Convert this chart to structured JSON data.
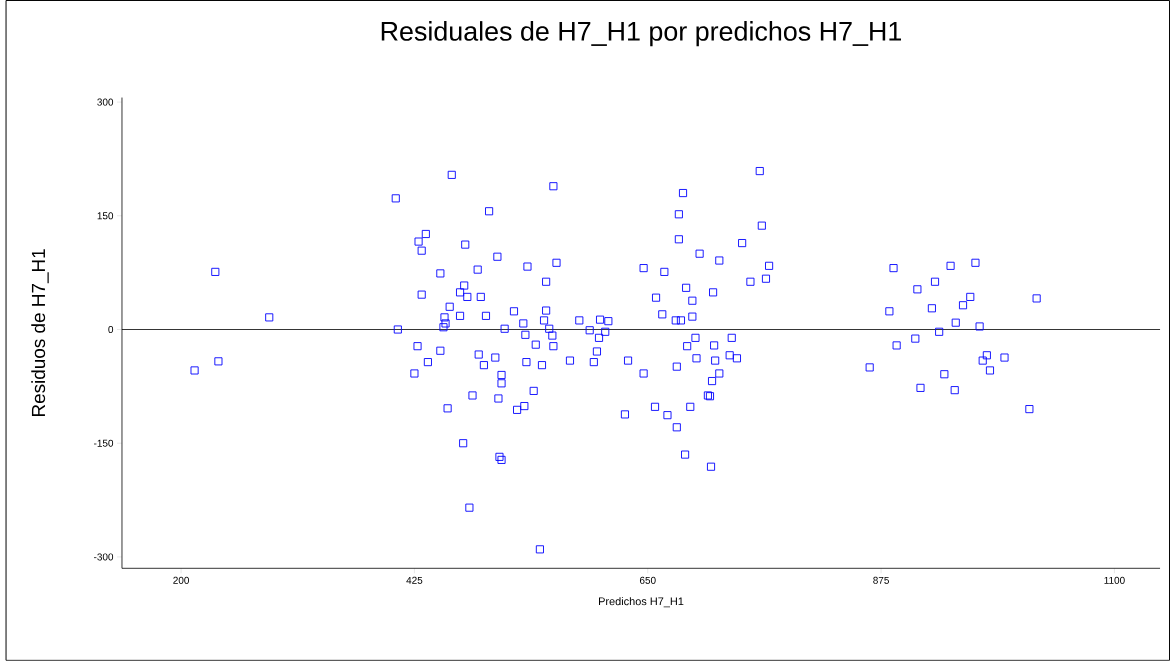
{
  "chart_data": {
    "type": "scatter",
    "title": "Residuales de H7_H1 por predichos H7_H1",
    "xlabel": "Predichos H7_H1",
    "ylabel": "Residuos de H7_H1",
    "xlim": [
      143,
      1144
    ],
    "ylim": [
      -315,
      306
    ],
    "xticks": [
      200,
      425,
      650,
      875,
      1100
    ],
    "yticks": [
      -300,
      -150,
      0,
      150,
      300
    ],
    "grid": false,
    "marker": "square",
    "ref_lines": [
      {
        "axis": "y",
        "value": 0,
        "color": "#000000"
      }
    ],
    "series": [
      {
        "color": "#0000ff",
        "x": [
          213,
          233,
          236,
          285,
          407,
          409,
          461,
          559,
          497,
          436,
          429,
          432,
          474,
          505,
          486,
          534,
          562,
          450,
          552,
          473,
          469,
          476,
          489,
          432,
          459,
          454,
          469,
          494,
          521,
          552,
          584,
          455,
          453,
          530,
          550,
          512,
          555,
          532,
          558,
          542,
          559,
          428,
          450,
          487,
          503,
          438,
          492,
          533,
          548,
          575,
          425,
          509,
          509,
          481,
          506,
          540,
          457,
          531,
          524,
          472,
          507,
          509,
          478,
          546,
          758,
          684,
          680,
          760,
          680,
          741,
          700,
          719,
          646,
          666,
          749,
          687,
          713,
          658,
          693,
          664,
          693,
          677,
          682,
          604,
          612,
          594,
          609,
          603,
          696,
          731,
          688,
          714,
          601,
          598,
          631,
          697,
          715,
          729,
          736,
          646,
          678,
          719,
          712,
          708,
          710,
          628,
          657,
          691,
          669,
          678,
          686,
          711,
          767,
          764,
          887,
          942,
          966,
          927,
          910,
          961,
          1025,
          954,
          883,
          924,
          947,
          970,
          931,
          908,
          890,
          977,
          973,
          994,
          980,
          864,
          936,
          913,
          946,
          1018
        ],
        "values": [
          -54,
          76,
          -42,
          16,
          173,
          0,
          204,
          189,
          156,
          126,
          116,
          104,
          112,
          96,
          79,
          83,
          88,
          74,
          63,
          58,
          49,
          43,
          43,
          46,
          30,
          16,
          18,
          18,
          24,
          25,
          12,
          8,
          3,
          8,
          12,
          1,
          1,
          -7,
          -8,
          -20,
          -22,
          -22,
          -28,
          -33,
          -37,
          -43,
          -47,
          -43,
          -47,
          -41,
          -58,
          -60,
          -71,
          -87,
          -91,
          -81,
          -104,
          -101,
          -106,
          -150,
          -168,
          -172,
          -235,
          -290,
          209,
          180,
          152,
          137,
          119,
          114,
          100,
          91,
          81,
          76,
          63,
          55,
          49,
          42,
          38,
          20,
          17,
          12,
          12,
          13,
          11,
          -1,
          -3,
          -11,
          -11,
          -11,
          -22,
          -21,
          -29,
          -43,
          -41,
          -38,
          -41,
          -34,
          -38,
          -58,
          -49,
          -58,
          -68,
          -87,
          -88,
          -112,
          -102,
          -102,
          -113,
          -129,
          -165,
          -181,
          84,
          67,
          81,
          84,
          88,
          63,
          53,
          43,
          41,
          32,
          24,
          28,
          9,
          4,
          -3,
          -12,
          -21,
          -34,
          -41,
          -37,
          -54,
          -50,
          -59,
          -77,
          -80,
          -105
        ]
      }
    ]
  }
}
